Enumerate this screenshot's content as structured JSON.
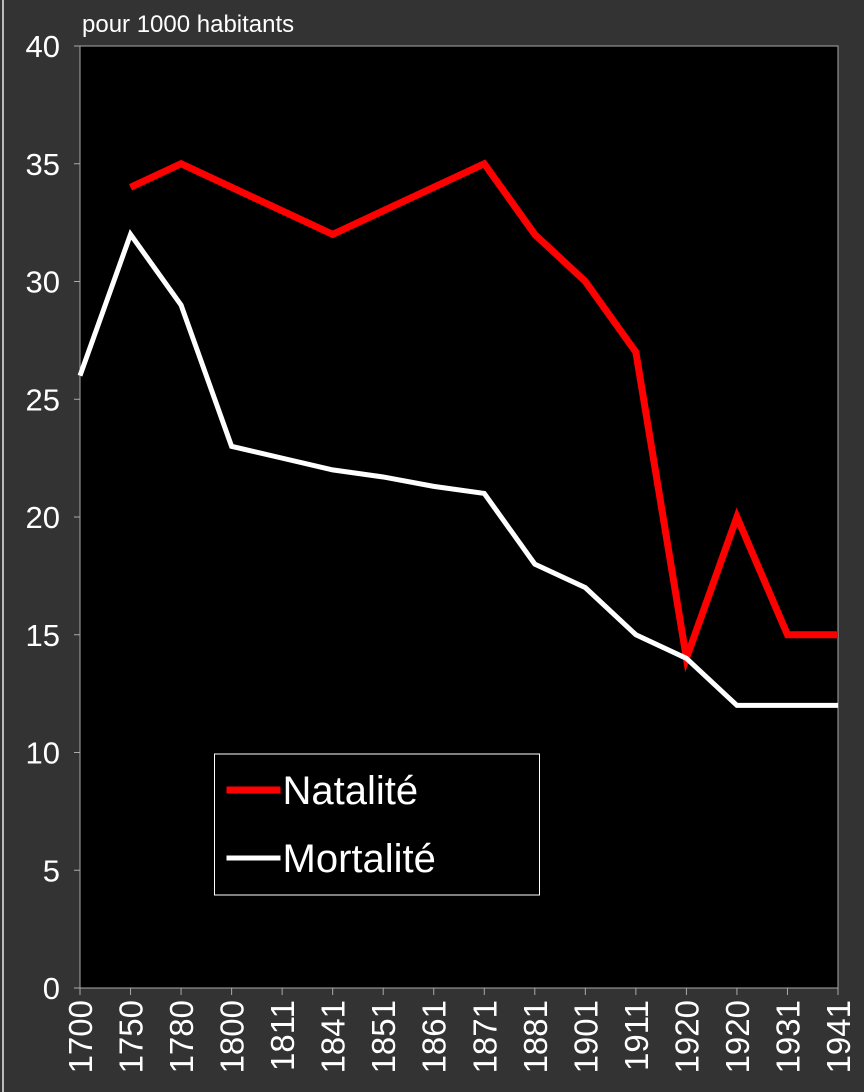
{
  "chart_data": {
    "type": "line",
    "subtitle": "pour 1000 habitants",
    "categories": [
      "1700",
      "1750",
      "1780",
      "1800",
      "1811",
      "1841",
      "1851",
      "1861",
      "1871",
      "1881",
      "1901",
      "1911",
      "1920",
      "1920",
      "1931",
      "1941"
    ],
    "series": [
      {
        "name": "Natalité",
        "color": "#ff0000",
        "values": [
          null,
          34,
          35,
          34,
          33,
          32,
          33,
          34,
          35,
          32,
          30,
          27,
          14,
          20,
          15,
          15
        ]
      },
      {
        "name": "Mortalité",
        "color": "#ffffff",
        "values": [
          26,
          32,
          29,
          23,
          22.5,
          22,
          21.7,
          21.3,
          21,
          18,
          17,
          15,
          14,
          12,
          12,
          12
        ]
      }
    ],
    "ylim": [
      0,
      40
    ],
    "yticks": [
      0,
      5,
      10,
      15,
      20,
      25,
      30,
      35,
      40
    ],
    "legend": "lower center"
  }
}
